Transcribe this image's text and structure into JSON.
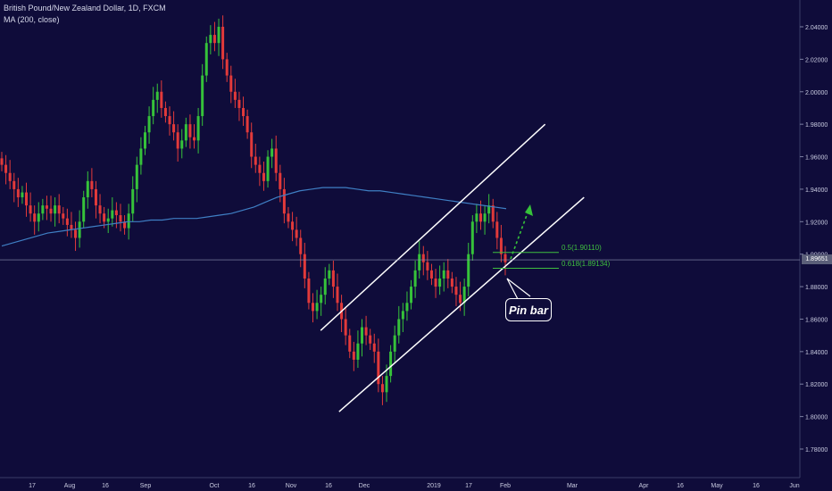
{
  "header": {
    "title": "British Pound/New Zealand Dollar, 1D, FXCM",
    "ma_label": "MA (200, close)"
  },
  "annotations": {
    "pin_bar": "Pin bar",
    "fib_05": "0.5(1.90110)",
    "fib_0618": "0.618(1.89134)",
    "last_price": "1.89651"
  },
  "colors": {
    "background": "#0f0c3a",
    "up": "#36c23a",
    "down": "#e23a3a",
    "ma": "#3f7fc4",
    "channel": "#ffffff",
    "fib": "#3fbf3f",
    "arrow": "#36c23a"
  },
  "chart_data": {
    "type": "candlestick",
    "title": "British Pound/New Zealand Dollar, 1D, FXCM",
    "ylim": [
      1.77,
      2.05
    ],
    "y_ticks": [
      "2.04000",
      "2.02000",
      "2.00000",
      "1.98000",
      "1.96000",
      "1.94000",
      "1.92000",
      "1.90000",
      "1.88000",
      "1.86000",
      "1.84000",
      "1.82000",
      "1.80000",
      "1.78000"
    ],
    "x_ticks": [
      "17",
      "Aug",
      "16",
      "Sep",
      "Oct",
      "16",
      "Nov",
      "16",
      "Dec",
      "2019",
      "17",
      "Feb",
      "Mar",
      "Apr",
      "16",
      "May",
      "16",
      "Jun"
    ],
    "close_series": [
      1.955,
      1.95,
      1.945,
      1.94,
      1.935,
      1.938,
      1.93,
      1.925,
      1.92,
      1.925,
      1.93,
      1.928,
      1.925,
      1.93,
      1.925,
      1.922,
      1.918,
      1.915,
      1.91,
      1.92,
      1.935,
      1.945,
      1.94,
      1.93,
      1.925,
      1.92,
      1.922,
      1.927,
      1.924,
      1.92,
      1.916,
      1.925,
      1.94,
      1.955,
      1.965,
      1.975,
      1.985,
      1.995,
      2.0,
      1.99,
      1.985,
      1.98,
      1.975,
      1.965,
      1.97,
      1.98,
      1.972,
      1.97,
      1.985,
      2.01,
      2.03,
      2.035,
      2.03,
      2.04,
      2.02,
      2.01,
      2.0,
      1.995,
      1.99,
      1.985,
      1.975,
      1.96,
      1.955,
      1.95,
      1.945,
      1.96,
      1.965,
      1.95,
      1.94,
      1.925,
      1.92,
      1.915,
      1.91,
      1.9,
      1.885,
      1.87,
      1.865,
      1.87,
      1.875,
      1.885,
      1.89,
      1.88,
      1.87,
      1.86,
      1.85,
      1.84,
      1.835,
      1.845,
      1.855,
      1.85,
      1.845,
      1.84,
      1.82,
      1.815,
      1.825,
      1.84,
      1.85,
      1.86,
      1.865,
      1.87,
      1.88,
      1.89,
      1.9,
      1.895,
      1.89,
      1.885,
      1.88,
      1.885,
      1.89,
      1.885,
      1.88,
      1.875,
      1.87,
      1.88,
      1.9,
      1.92,
      1.925,
      1.92,
      1.925,
      1.93,
      1.92,
      1.91,
      1.9,
      1.895
    ],
    "ma200": [
      1.905,
      1.907,
      1.909,
      1.911,
      1.913,
      1.914,
      1.915,
      1.916,
      1.917,
      1.918,
      1.919,
      1.92,
      1.92,
      1.921,
      1.921,
      1.922,
      1.922,
      1.922,
      1.923,
      1.924,
      1.925,
      1.927,
      1.929,
      1.932,
      1.935,
      1.937,
      1.939,
      1.94,
      1.941,
      1.941,
      1.941,
      1.94,
      1.939,
      1.939,
      1.938,
      1.937,
      1.936,
      1.935,
      1.934,
      1.933,
      1.932,
      1.931,
      1.93,
      1.929,
      1.928
    ],
    "channel_upper": [
      {
        "x": 0.47,
        "y": 1.853
      },
      {
        "x": 0.91,
        "y": 1.98
      }
    ],
    "channel_lower": [
      {
        "x": 0.497,
        "y": 1.803
      },
      {
        "x": 0.975,
        "y": 1.935
      }
    ],
    "fib_levels": [
      {
        "label": "0.5(1.90110)",
        "value": 1.9011
      },
      {
        "label": "0.618(1.89134)",
        "value": 1.89134
      }
    ],
    "last_price": 1.89651,
    "annotation": "Pin bar"
  }
}
